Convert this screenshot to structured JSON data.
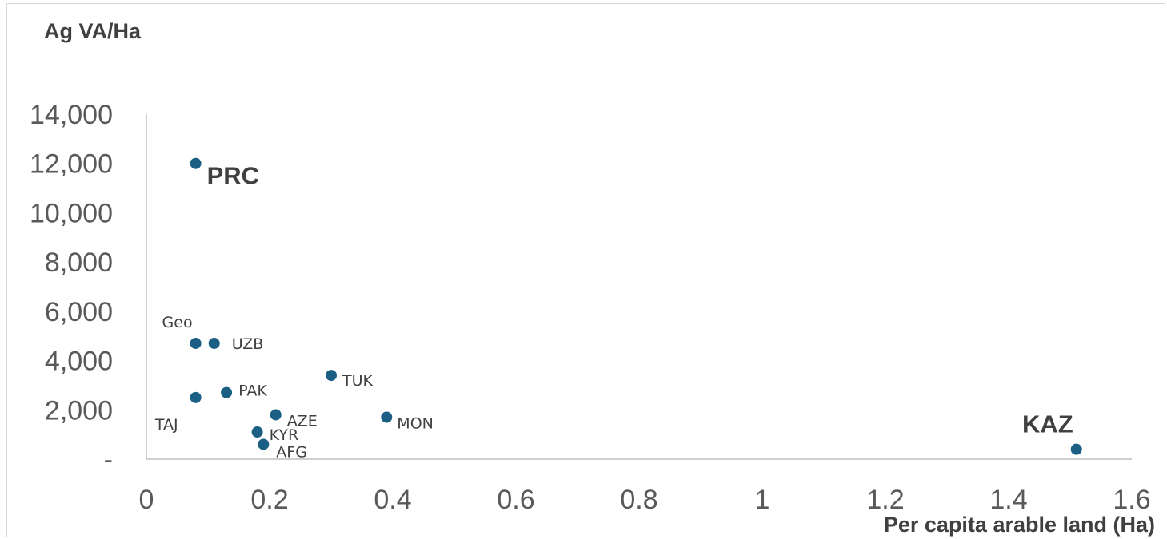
{
  "chart_data": {
    "type": "scatter",
    "ylabel": "Ag VA/Ha",
    "xlabel": "Per capita arable land (Ha)",
    "xlim": [
      0,
      1.6
    ],
    "ylim": [
      0,
      14000
    ],
    "x_ticks": [
      0,
      0.2,
      0.4,
      0.6,
      0.8,
      1,
      1.2,
      1.4,
      1.6
    ],
    "x_tick_labels": [
      "0",
      "0.2",
      "0.4",
      "0.6",
      "0.8",
      "1",
      "1.2",
      "1.4",
      "1.6"
    ],
    "y_ticks": [
      0,
      2000,
      4000,
      6000,
      8000,
      10000,
      12000,
      14000
    ],
    "y_tick_labels": [
      "-",
      "2,000",
      "4,000",
      "6,000",
      "8,000",
      "10,000",
      "12,000",
      "14,000"
    ],
    "grid": false,
    "legend": "none",
    "marker_color": "#1b5f85",
    "points": [
      {
        "label": "PRC",
        "x": 0.08,
        "y": 12000,
        "emphasis": true
      },
      {
        "label": "Geo",
        "x": 0.08,
        "y": 4700
      },
      {
        "label": "UZB",
        "x": 0.11,
        "y": 4700
      },
      {
        "label": "TUK",
        "x": 0.3,
        "y": 3400
      },
      {
        "label": "TAJ",
        "x": 0.08,
        "y": 2500
      },
      {
        "label": "PAK",
        "x": 0.13,
        "y": 2700
      },
      {
        "label": "AZE",
        "x": 0.21,
        "y": 1800
      },
      {
        "label": "MON",
        "x": 0.39,
        "y": 1700
      },
      {
        "label": "KYR",
        "x": 0.18,
        "y": 1100
      },
      {
        "label": "AFG",
        "x": 0.19,
        "y": 600
      },
      {
        "label": "KAZ",
        "x": 1.51,
        "y": 400,
        "emphasis": true
      }
    ]
  }
}
